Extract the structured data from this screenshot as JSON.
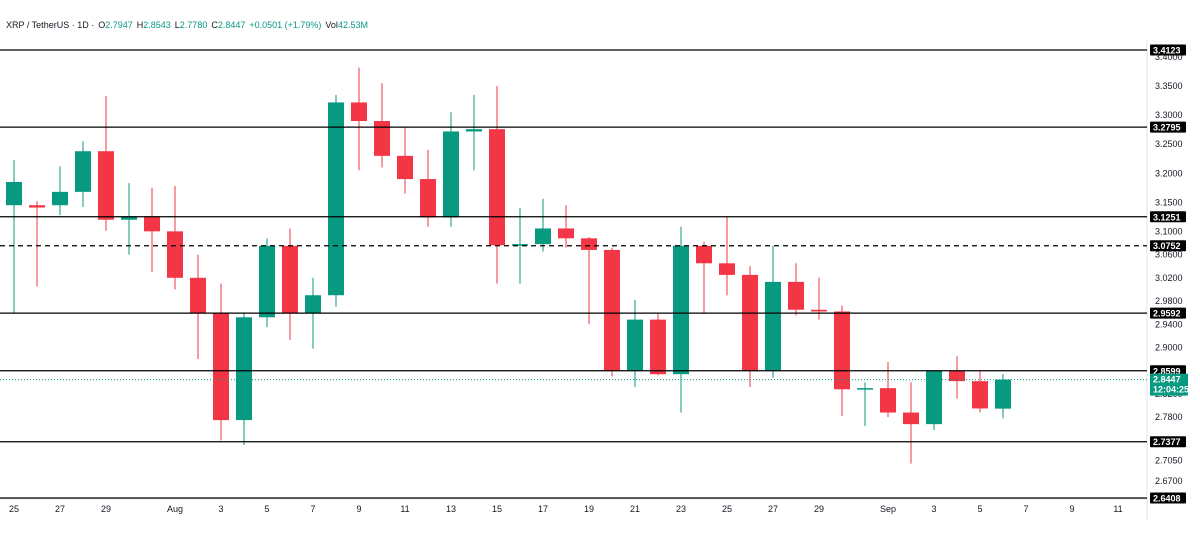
{
  "header": {
    "symbol": "XRP / TetherUS · 1D ·",
    "o_label": "O",
    "o_value": "2.7947",
    "h_label": "H",
    "h_value": "2.8543",
    "l_label": "L",
    "l_value": "2.7780",
    "c_label": "C",
    "c_value": "2.8447",
    "change": "+0.0501 (+1.79%)",
    "vol_label": "Vol",
    "vol_value": "42.53M"
  },
  "colors": {
    "up": "#089981",
    "down": "#f23645",
    "level_line": "#000000",
    "badge": "#000000",
    "price_badge": "#089981",
    "axis_text": "#131722"
  },
  "chart_data": {
    "type": "candlestick",
    "title": "",
    "xlabel": "",
    "ylabel": "",
    "ylim": [
      2.635,
      3.43
    ],
    "grid": false,
    "y_ticks": [
      "3.4000",
      "3.3500",
      "3.3000",
      "3.2500",
      "3.2000",
      "3.1500",
      "3.1000",
      "3.0600",
      "3.0200",
      "2.9800",
      "2.9400",
      "2.9000",
      "2.8200",
      "2.7800",
      "2.7050",
      "2.6700"
    ],
    "x_tick_labels": [
      {
        "label": "25",
        "index": 0
      },
      {
        "label": "27",
        "index": 2
      },
      {
        "label": "29",
        "index": 4
      },
      {
        "label": "Aug",
        "index": 7
      },
      {
        "label": "3",
        "index": 9
      },
      {
        "label": "5",
        "index": 11
      },
      {
        "label": "7",
        "index": 13
      },
      {
        "label": "9",
        "index": 15
      },
      {
        "label": "11",
        "index": 17
      },
      {
        "label": "13",
        "index": 19
      },
      {
        "label": "15",
        "index": 21
      },
      {
        "label": "17",
        "index": 23
      },
      {
        "label": "19",
        "index": 25
      },
      {
        "label": "21",
        "index": 27
      },
      {
        "label": "23",
        "index": 29
      },
      {
        "label": "25",
        "index": 31
      },
      {
        "label": "27",
        "index": 33
      },
      {
        "label": "29",
        "index": 35
      },
      {
        "label": "Sep",
        "index": 38
      },
      {
        "label": "3",
        "index": 40
      },
      {
        "label": "5",
        "index": 42
      },
      {
        "label": "7",
        "index": 44
      },
      {
        "label": "9",
        "index": 46
      },
      {
        "label": "11",
        "index": 48
      }
    ],
    "levels": [
      {
        "value": 3.4123,
        "label": "3.4123",
        "style": "solid"
      },
      {
        "value": 3.2795,
        "label": "3.2795",
        "style": "solid"
      },
      {
        "value": 3.1251,
        "label": "3.1251",
        "style": "solid"
      },
      {
        "value": 3.0752,
        "label": "3.0752",
        "style": "dashed"
      },
      {
        "value": 2.9592,
        "label": "2.9592",
        "style": "solid"
      },
      {
        "value": 2.8599,
        "label": "2.8599",
        "style": "solid"
      },
      {
        "value": 2.7377,
        "label": "2.7377",
        "style": "solid"
      },
      {
        "value": 2.6408,
        "label": "2.6408",
        "style": "solid"
      }
    ],
    "current_price": {
      "value": 2.8447,
      "label": "2.8447",
      "countdown": "12:04:25"
    },
    "candles": [
      {
        "o": 3.145,
        "h": 3.223,
        "l": 2.96,
        "c": 3.185
      },
      {
        "o": 3.145,
        "h": 3.152,
        "l": 3.005,
        "c": 3.141
      },
      {
        "o": 3.145,
        "h": 3.212,
        "l": 3.128,
        "c": 3.168
      },
      {
        "o": 3.168,
        "h": 3.255,
        "l": 3.142,
        "c": 3.238
      },
      {
        "o": 3.238,
        "h": 3.333,
        "l": 3.101,
        "c": 3.12
      },
      {
        "o": 3.12,
        "h": 3.183,
        "l": 3.06,
        "c": 3.126
      },
      {
        "o": 3.126,
        "h": 3.175,
        "l": 3.03,
        "c": 3.1
      },
      {
        "o": 3.1,
        "h": 3.178,
        "l": 3.0,
        "c": 3.02
      },
      {
        "o": 3.02,
        "h": 3.06,
        "l": 2.88,
        "c": 2.96
      },
      {
        "o": 2.96,
        "h": 3.01,
        "l": 2.74,
        "c": 2.775
      },
      {
        "o": 2.775,
        "h": 2.96,
        "l": 2.732,
        "c": 2.952
      },
      {
        "o": 2.952,
        "h": 3.088,
        "l": 2.935,
        "c": 3.075
      },
      {
        "o": 3.075,
        "h": 3.105,
        "l": 2.913,
        "c": 2.96
      },
      {
        "o": 2.96,
        "h": 3.02,
        "l": 2.898,
        "c": 2.99
      },
      {
        "o": 2.99,
        "h": 3.335,
        "l": 2.97,
        "c": 3.322
      },
      {
        "o": 3.322,
        "h": 3.382,
        "l": 3.205,
        "c": 3.29
      },
      {
        "o": 3.29,
        "h": 3.355,
        "l": 3.21,
        "c": 3.23
      },
      {
        "o": 3.23,
        "h": 3.28,
        "l": 3.165,
        "c": 3.19
      },
      {
        "o": 3.19,
        "h": 3.24,
        "l": 3.108,
        "c": 3.124
      },
      {
        "o": 3.124,
        "h": 3.305,
        "l": 3.108,
        "c": 3.272
      },
      {
        "o": 3.272,
        "h": 3.335,
        "l": 3.205,
        "c": 3.276
      },
      {
        "o": 3.276,
        "h": 3.35,
        "l": 3.01,
        "c": 3.076
      },
      {
        "o": 3.076,
        "h": 3.14,
        "l": 3.01,
        "c": 3.078
      },
      {
        "o": 3.078,
        "h": 3.156,
        "l": 3.065,
        "c": 3.105
      },
      {
        "o": 3.105,
        "h": 3.145,
        "l": 3.072,
        "c": 3.088
      },
      {
        "o": 3.088,
        "h": 3.09,
        "l": 2.94,
        "c": 3.068
      },
      {
        "o": 3.068,
        "h": 3.072,
        "l": 2.85,
        "c": 2.86
      },
      {
        "o": 2.86,
        "h": 2.982,
        "l": 2.832,
        "c": 2.948
      },
      {
        "o": 2.948,
        "h": 2.958,
        "l": 2.852,
        "c": 2.854
      },
      {
        "o": 2.854,
        "h": 3.108,
        "l": 2.788,
        "c": 3.075
      },
      {
        "o": 3.075,
        "h": 3.082,
        "l": 2.958,
        "c": 3.045
      },
      {
        "o": 3.045,
        "h": 3.126,
        "l": 2.99,
        "c": 3.025
      },
      {
        "o": 3.025,
        "h": 3.04,
        "l": 2.832,
        "c": 2.86
      },
      {
        "o": 2.86,
        "h": 3.075,
        "l": 2.848,
        "c": 3.013
      },
      {
        "o": 3.013,
        "h": 3.045,
        "l": 2.955,
        "c": 2.965
      },
      {
        "o": 2.965,
        "h": 3.02,
        "l": 2.948,
        "c": 2.962
      },
      {
        "o": 2.962,
        "h": 2.972,
        "l": 2.782,
        "c": 2.828
      },
      {
        "o": 2.828,
        "h": 2.84,
        "l": 2.765,
        "c": 2.83
      },
      {
        "o": 2.83,
        "h": 2.875,
        "l": 2.78,
        "c": 2.788
      },
      {
        "o": 2.788,
        "h": 2.84,
        "l": 2.7,
        "c": 2.768
      },
      {
        "o": 2.768,
        "h": 2.86,
        "l": 2.758,
        "c": 2.86
      },
      {
        "o": 2.86,
        "h": 2.885,
        "l": 2.812,
        "c": 2.842
      },
      {
        "o": 2.842,
        "h": 2.86,
        "l": 2.788,
        "c": 2.795
      },
      {
        "o": 2.7947,
        "h": 2.8543,
        "l": 2.778,
        "c": 2.8447
      }
    ]
  }
}
